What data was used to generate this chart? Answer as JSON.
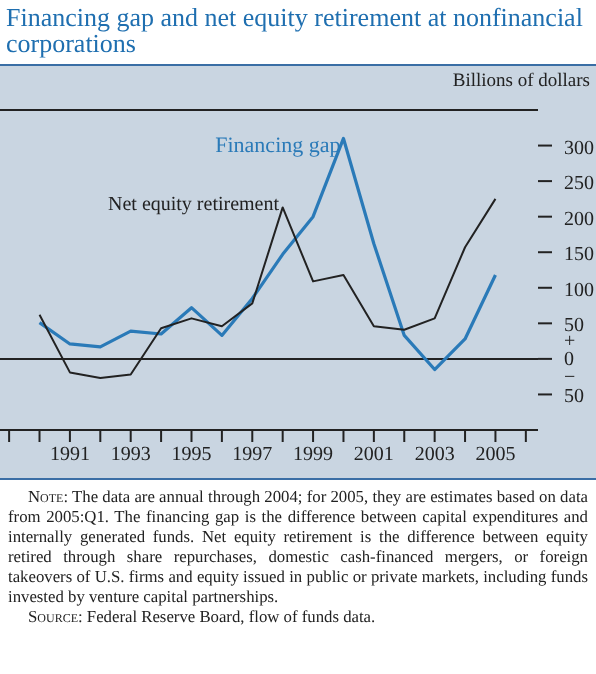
{
  "chart_data": {
    "type": "line",
    "title": "Financing gap and net equity retirement at nonfinancial corporations",
    "ylabel": "Billions of dollars",
    "x": [
      1990,
      1991,
      1992,
      1993,
      1994,
      1995,
      1996,
      1997,
      1998,
      1999,
      2000,
      2001,
      2002,
      2003,
      2004,
      2005
    ],
    "series": [
      {
        "name": "Financing gap",
        "color": "#2a7ab8",
        "values": [
          51,
          21,
          17,
          39,
          35,
          72,
          33,
          85,
          147,
          200,
          310,
          162,
          33,
          -15,
          28,
          118
        ]
      },
      {
        "name": "Net equity retirement",
        "color": "#222222",
        "values": [
          62,
          -19,
          -27,
          -22,
          43,
          57,
          46,
          78,
          213,
          109,
          118,
          46,
          41,
          57,
          157,
          225
        ]
      }
    ],
    "xlim": [
      1988.7,
      2006.4
    ],
    "xticks": [
      {
        "value": 1989,
        "label": null
      },
      {
        "value": 1990,
        "label": null
      },
      1991,
      {
        "value": 1992,
        "label": null
      },
      1993,
      {
        "value": 1994,
        "label": null
      },
      1995,
      {
        "value": 1996,
        "label": null
      },
      1997,
      {
        "value": 1998,
        "label": null
      },
      1999,
      {
        "value": 2000,
        "label": null
      },
      2001,
      {
        "value": 2002,
        "label": null
      },
      2003,
      {
        "value": 2004,
        "label": null
      },
      2005,
      {
        "value": 2006,
        "label": null
      }
    ],
    "ylim": [
      -100,
      350
    ],
    "yticks": [
      {
        "value": -50,
        "label": "50"
      },
      {
        "value": 0,
        "label": "+ 0 −"
      },
      50,
      100,
      150,
      200,
      250,
      300
    ],
    "ref_lines": [
      {
        "axis": "y",
        "value": 0,
        "color": "#222222"
      }
    ],
    "marker": "none",
    "line_style": "solid",
    "annotations": [
      "Note: The data are annual through 2004; for 2005, they are estimates based on data from 2005:Q1. The financing gap is the difference between capital expenditures and internally generated funds. Net equity retirement is the difference between equity retired through share repurchases, domestic cash-financed mergers, or foreign takeovers of U.S. firms and equity issued in public or private markets, including funds invested by venture capital partnerships.",
      "Source: Federal Reserve Board, flow of funds data."
    ]
  }
}
